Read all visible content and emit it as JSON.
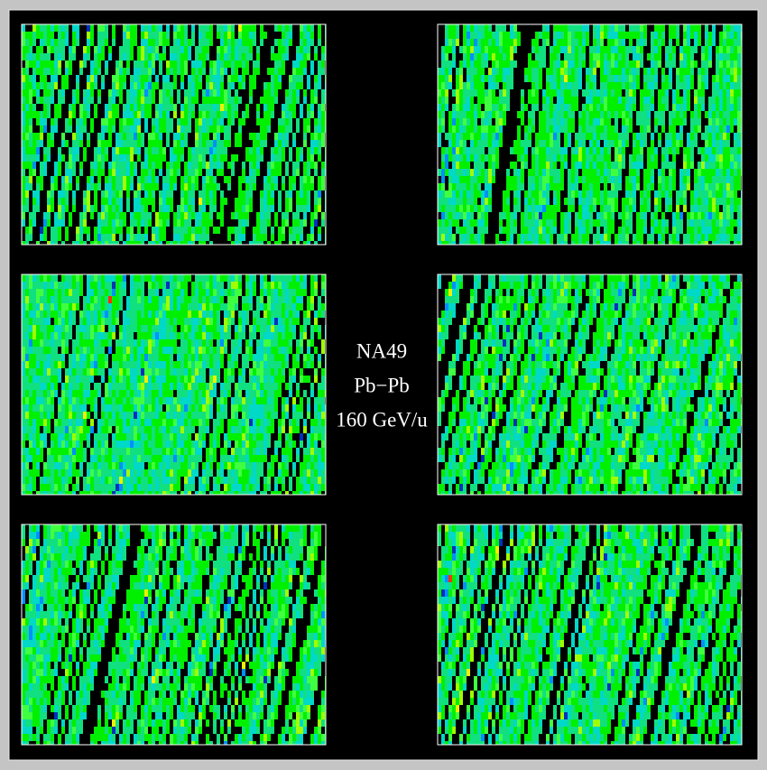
{
  "labels": {
    "experiment": "NA49",
    "system": "Pb−Pb",
    "energy": "160 GeV/u"
  }
}
